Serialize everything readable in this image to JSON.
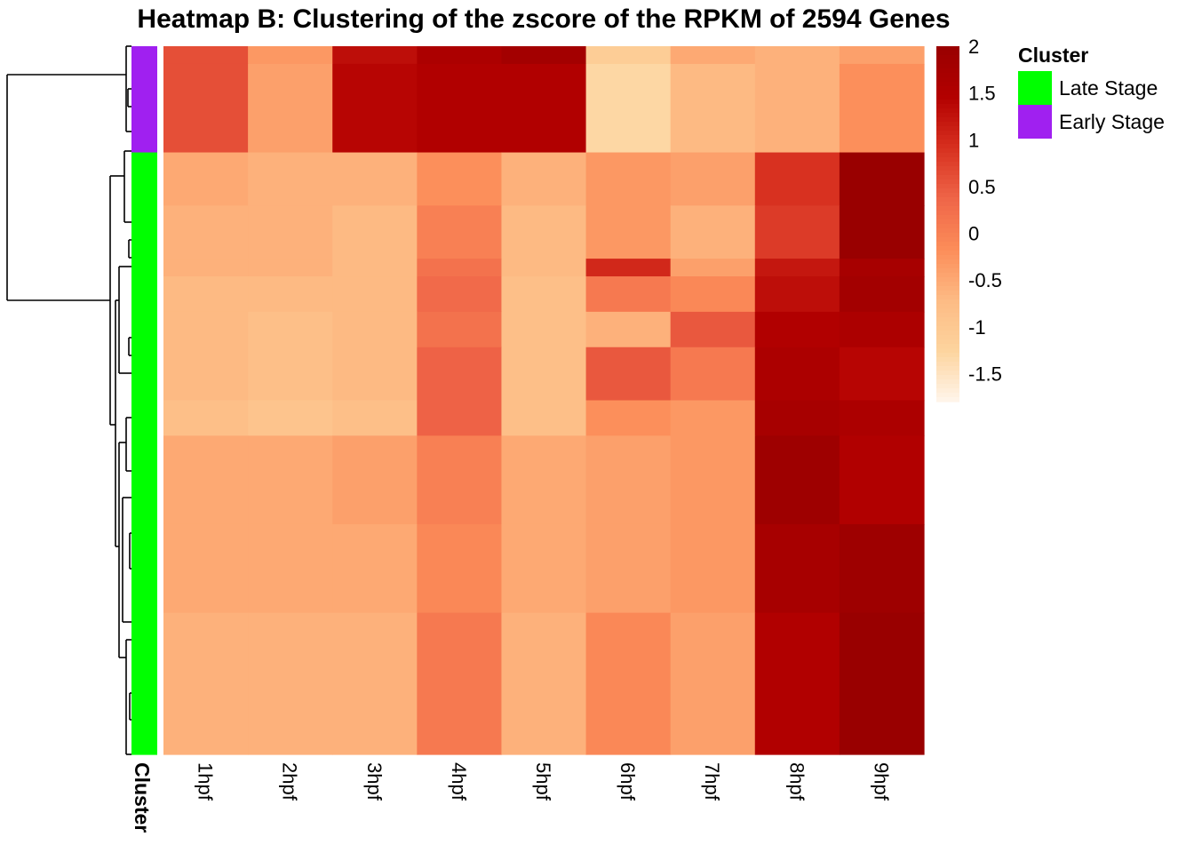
{
  "chart_data": {
    "type": "heatmap",
    "title": "Heatmap B: Clustering of the zscore of the RPKM of 2594 Genes",
    "columns": [
      "1hpf",
      "2hpf",
      "3hpf",
      "4hpf",
      "5hpf",
      "6hpf",
      "7hpf",
      "8hpf",
      "9hpf"
    ],
    "row_annotation": {
      "name": "Cluster",
      "legend_title": "Cluster",
      "categories": [
        {
          "label": "Late Stage",
          "color": "#00ff00"
        },
        {
          "label": "Early Stage",
          "color": "#a020f0"
        }
      ]
    },
    "color_scale": {
      "ticks": [
        "2",
        "1.5",
        "1",
        "0.5",
        "0",
        "-0.5",
        "-1",
        "-1.5"
      ],
      "tick_values": [
        2,
        1.5,
        1,
        0.5,
        0,
        -0.5,
        -1,
        -1.5
      ],
      "range": [
        -1.8,
        2.0
      ],
      "colors": [
        "#fff5eb",
        "#fdd49e",
        "#fdbb84",
        "#fc8d59",
        "#ef6548",
        "#d7301f",
        "#b30000",
        "#990000"
      ]
    },
    "row_blocks": [
      {
        "cluster": "Early Stage",
        "rows": 1,
        "values": [
          0.6,
          -0.3,
          1.3,
          1.6,
          1.8,
          -1.1,
          -0.5,
          -0.6,
          -0.4
        ]
      },
      {
        "cluster": "Early Stage",
        "rows": 5,
        "values": [
          0.6,
          -0.4,
          1.4,
          1.5,
          1.5,
          -1.3,
          -0.7,
          -0.6,
          -0.2
        ]
      },
      {
        "cluster": "Late Stage",
        "rows": 3,
        "values": [
          -0.5,
          -0.6,
          -0.6,
          -0.2,
          -0.6,
          -0.3,
          -0.4,
          0.9,
          2.0
        ]
      },
      {
        "cluster": "Late Stage",
        "rows": 3,
        "values": [
          -0.6,
          -0.6,
          -0.7,
          0.0,
          -0.7,
          -0.3,
          -0.6,
          0.8,
          2.0
        ]
      },
      {
        "cluster": "Late Stage",
        "rows": 1,
        "values": [
          -0.6,
          -0.6,
          -0.7,
          0.2,
          -0.7,
          1.0,
          -0.4,
          1.2,
          1.7
        ]
      },
      {
        "cluster": "Late Stage",
        "rows": 2,
        "values": [
          -0.7,
          -0.7,
          -0.7,
          0.3,
          -0.8,
          0.1,
          -0.1,
          1.3,
          1.8
        ]
      },
      {
        "cluster": "Late Stage",
        "rows": 2,
        "values": [
          -0.7,
          -0.8,
          -0.7,
          0.2,
          -0.8,
          -0.6,
          0.5,
          1.5,
          1.6
        ]
      },
      {
        "cluster": "Late Stage",
        "rows": 3,
        "values": [
          -0.7,
          -0.8,
          -0.7,
          0.4,
          -0.8,
          0.5,
          0.1,
          1.6,
          1.4
        ]
      },
      {
        "cluster": "Late Stage",
        "rows": 2,
        "values": [
          -0.8,
          -0.9,
          -0.8,
          0.4,
          -0.8,
          -0.2,
          -0.3,
          1.7,
          1.6
        ]
      },
      {
        "cluster": "Late Stage",
        "rows": 5,
        "values": [
          -0.5,
          -0.5,
          -0.4,
          0.0,
          -0.5,
          -0.4,
          -0.3,
          1.9,
          1.5
        ]
      },
      {
        "cluster": "Late Stage",
        "rows": 5,
        "values": [
          -0.5,
          -0.5,
          -0.5,
          -0.1,
          -0.5,
          -0.4,
          -0.3,
          1.7,
          1.9
        ]
      },
      {
        "cluster": "Late Stage",
        "rows": 8,
        "values": [
          -0.6,
          -0.6,
          -0.6,
          0.1,
          -0.6,
          -0.1,
          -0.4,
          1.5,
          2.0
        ]
      }
    ]
  }
}
